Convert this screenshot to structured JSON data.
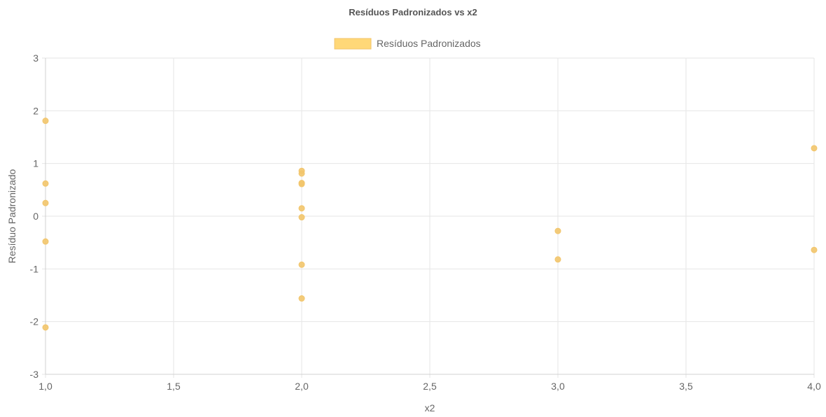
{
  "chart_data": {
    "type": "scatter",
    "title": "Resíduos Padronizados vs x2",
    "xlabel": "x2",
    "ylabel": "Resíduo Padronizado",
    "xlim": [
      1.0,
      4.0
    ],
    "ylim": [
      -3,
      3
    ],
    "x_ticks": [
      1.0,
      1.5,
      2.0,
      2.5,
      3.0,
      3.5,
      4.0
    ],
    "x_tick_labels": [
      "1,0",
      "1,5",
      "2,0",
      "2,5",
      "3,0",
      "3,5",
      "4,0"
    ],
    "y_ticks": [
      -3,
      -2,
      -1,
      0,
      1,
      2,
      3
    ],
    "y_tick_labels": [
      "-3",
      "-2",
      "-1",
      "0",
      "1",
      "2",
      "3"
    ],
    "grid": true,
    "legend_position": "top-center",
    "series": [
      {
        "name": "Resíduos Padronizados",
        "color": "#f2c56b",
        "legend_color": "#ffd878",
        "points": [
          {
            "x": 1.0,
            "y": 1.81
          },
          {
            "x": 1.0,
            "y": 0.62
          },
          {
            "x": 1.0,
            "y": 0.25
          },
          {
            "x": 1.0,
            "y": -0.48
          },
          {
            "x": 1.0,
            "y": -2.11
          },
          {
            "x": 2.0,
            "y": 0.86
          },
          {
            "x": 2.0,
            "y": 0.81
          },
          {
            "x": 2.0,
            "y": 0.63
          },
          {
            "x": 2.0,
            "y": 0.61
          },
          {
            "x": 2.0,
            "y": 0.15
          },
          {
            "x": 2.0,
            "y": -0.02
          },
          {
            "x": 2.0,
            "y": -0.92
          },
          {
            "x": 2.0,
            "y": -1.56
          },
          {
            "x": 3.0,
            "y": -0.28
          },
          {
            "x": 3.0,
            "y": -0.82
          },
          {
            "x": 4.0,
            "y": 1.29
          },
          {
            "x": 4.0,
            "y": -0.64
          }
        ]
      }
    ]
  }
}
